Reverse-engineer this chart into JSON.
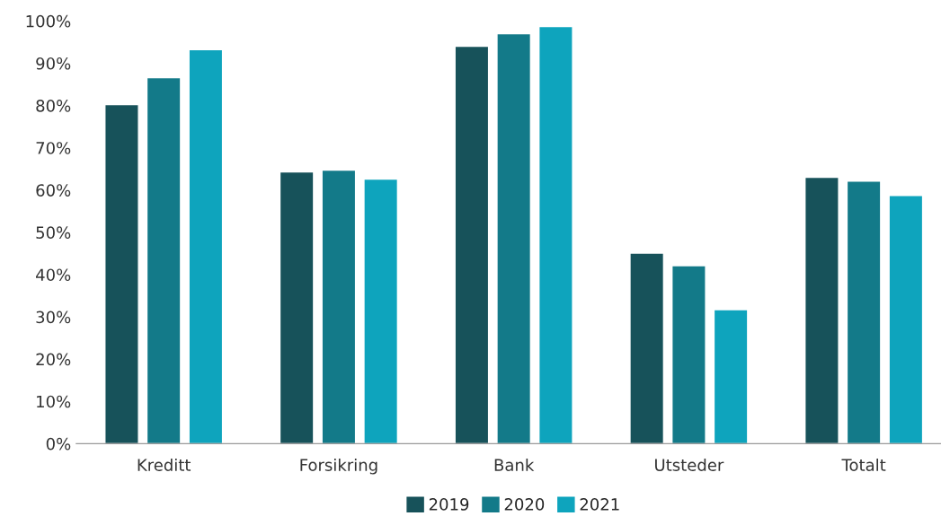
{
  "chart_data": {
    "type": "bar",
    "categories": [
      "Kreditt",
      "Forsikring",
      "Bank",
      "Utsteder",
      "Totalt"
    ],
    "series": [
      {
        "name": "2019",
        "color": "#17525a",
        "values": [
          80.2,
          64.3,
          94.0,
          45.1,
          63.0
        ]
      },
      {
        "name": "2020",
        "color": "#137a89",
        "values": [
          86.6,
          64.7,
          97.0,
          42.1,
          62.1
        ]
      },
      {
        "name": "2021",
        "color": "#0ea4bd",
        "values": [
          93.2,
          62.6,
          98.7,
          31.7,
          58.7
        ]
      }
    ],
    "ylim": [
      0,
      100
    ],
    "yticks": [
      {
        "value": 0,
        "label": "0%"
      },
      {
        "value": 10,
        "label": "10%"
      },
      {
        "value": 20,
        "label": "20%"
      },
      {
        "value": 30,
        "label": "30%"
      },
      {
        "value": 40,
        "label": "40%"
      },
      {
        "value": 50,
        "label": "50%"
      },
      {
        "value": 60,
        "label": "60%"
      },
      {
        "value": 70,
        "label": "70%"
      },
      {
        "value": 80,
        "label": "80%"
      },
      {
        "value": 90,
        "label": "90%"
      },
      {
        "value": 100,
        "label": "100%"
      }
    ],
    "grid": false,
    "legend": "bottom"
  }
}
